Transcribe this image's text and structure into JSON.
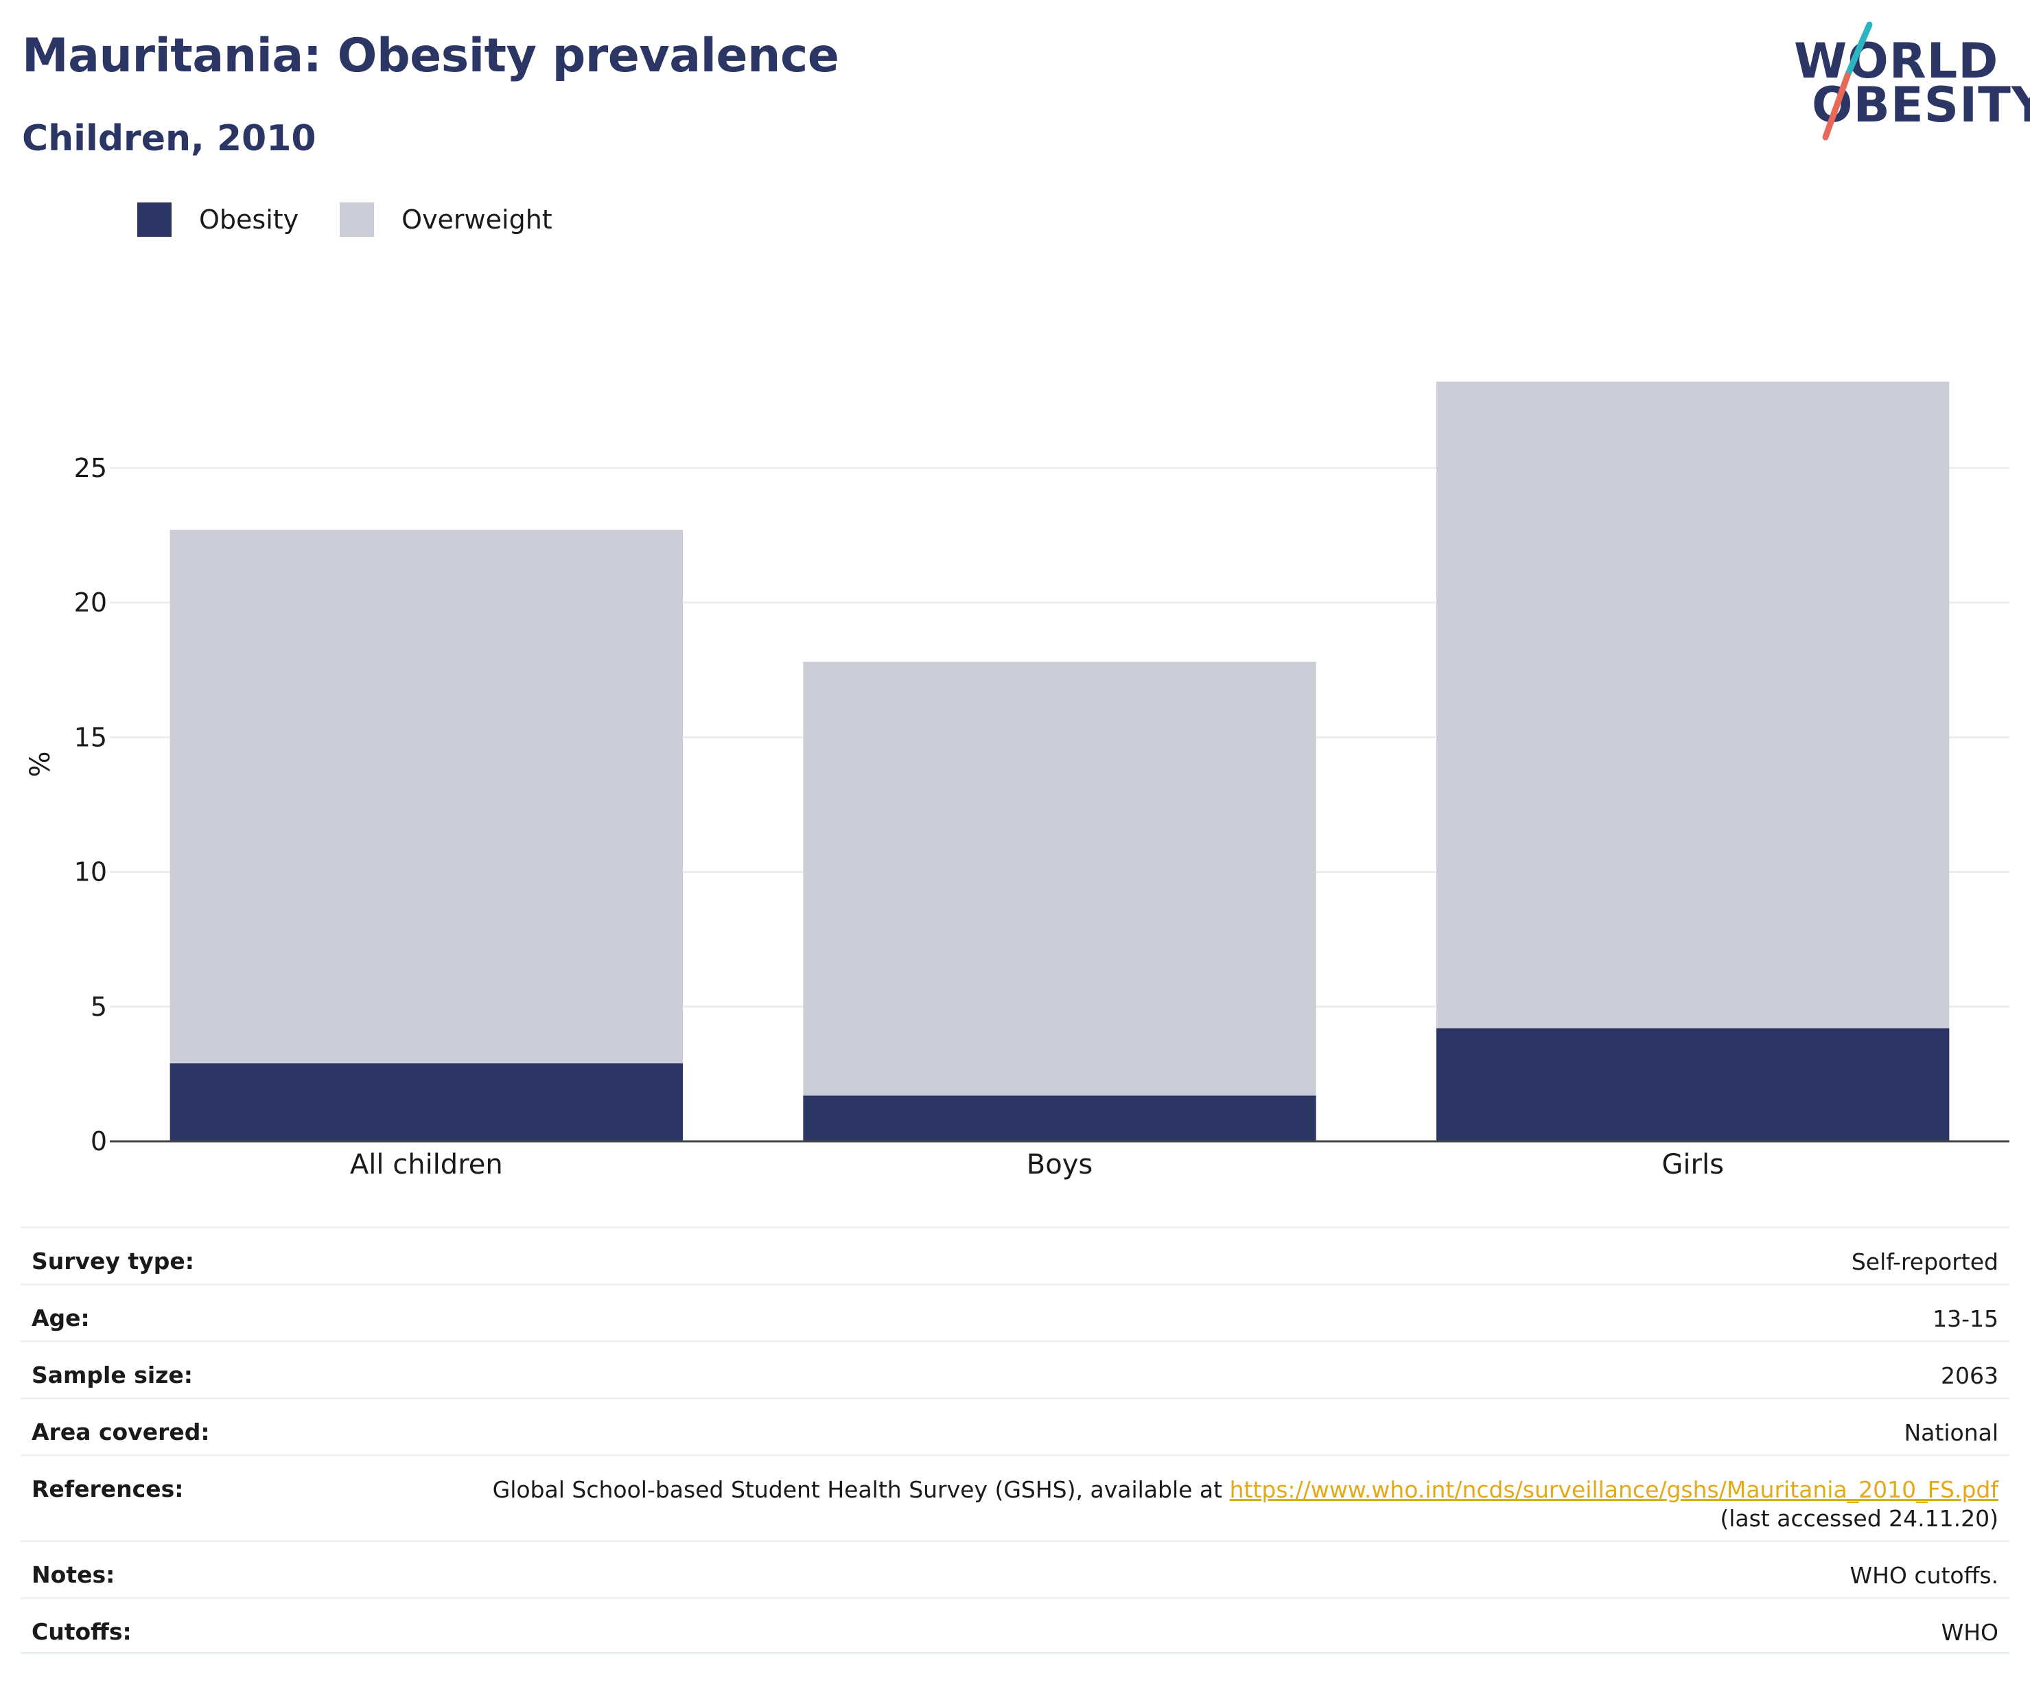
{
  "header": {
    "title": "Mauritania: Obesity prevalence",
    "subtitle": "Children, 2010"
  },
  "logo": {
    "line1": "WORLD",
    "line2": "OBESITY",
    "accent_teal": "#2bb5c0",
    "accent_coral": "#e8685a"
  },
  "legend": [
    {
      "label": "Obesity",
      "color": "#2b3664"
    },
    {
      "label": "Overweight",
      "color": "#caccd7"
    }
  ],
  "chart_data": {
    "type": "bar",
    "stacked": true,
    "categories": [
      "All children",
      "Boys",
      "Girls"
    ],
    "series": [
      {
        "name": "Obesity",
        "values": [
          2.9,
          1.7,
          4.2
        ],
        "color": "#2b3664"
      },
      {
        "name": "Overweight",
        "values": [
          19.8,
          16.1,
          24.0
        ],
        "color": "#caccd7"
      }
    ],
    "totals": [
      22.7,
      17.8,
      28.2
    ],
    "ylabel": "%",
    "ylim": [
      0,
      28.5
    ],
    "yticks": [
      0,
      5,
      10,
      15,
      20,
      25
    ],
    "grid": true,
    "legend_position": "top-left"
  },
  "meta": {
    "rows": [
      {
        "key": "Survey type:",
        "value": "Self-reported"
      },
      {
        "key": "Age:",
        "value": "13-15"
      },
      {
        "key": "Sample size:",
        "value": "2063"
      },
      {
        "key": "Area covered:",
        "value": "National"
      },
      {
        "key": "Notes:",
        "value": "WHO cutoffs."
      },
      {
        "key": "Cutoffs:",
        "value": "WHO"
      }
    ],
    "references": {
      "key": "References:",
      "text": "Global School-based Student Health Survey (GSHS), available at",
      "link": "https://www.who.int/ncds/surveillance/gshs/Mauritania_2010_FS.pdf",
      "accessed": "(last accessed 24.11.20)"
    }
  }
}
